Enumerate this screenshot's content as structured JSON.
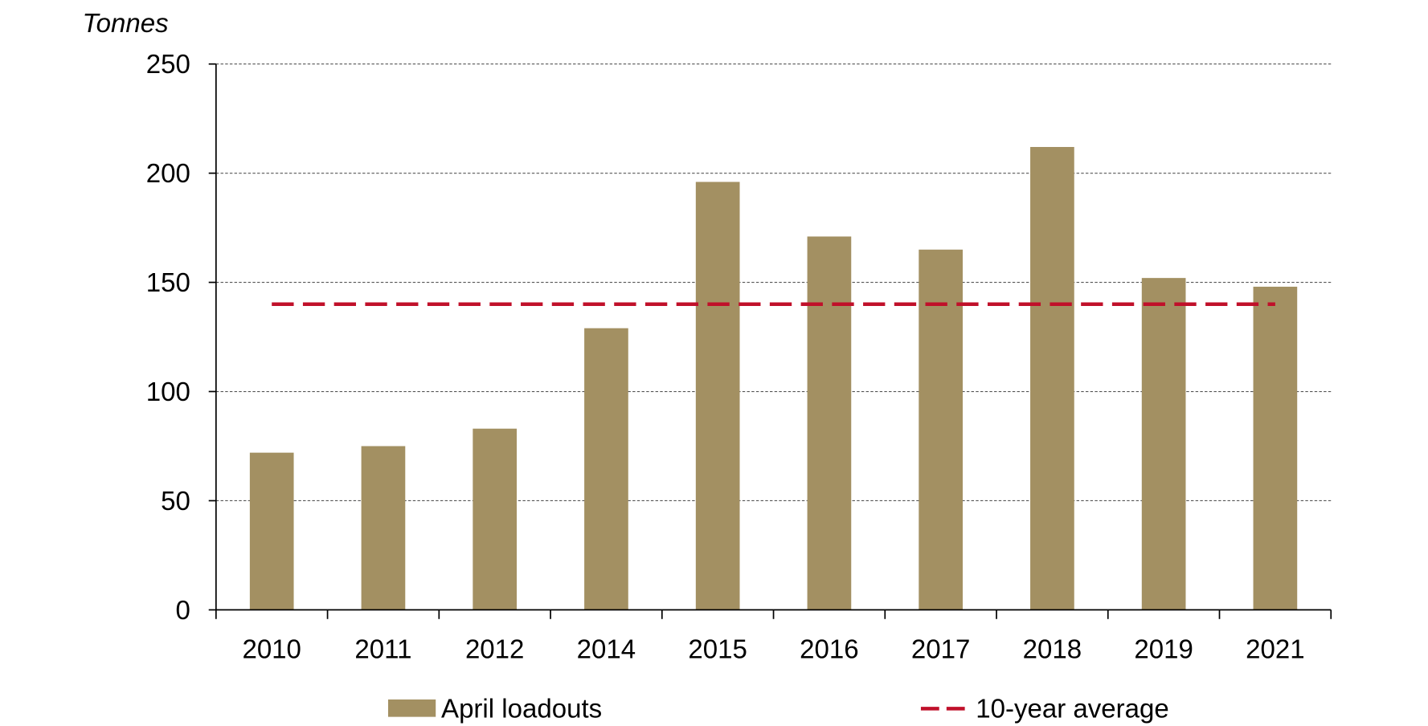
{
  "chart_data": {
    "type": "bar",
    "title": "",
    "xlabel": "",
    "ylabel": "Tonnes",
    "ylim": [
      0,
      250
    ],
    "yticks": [
      0,
      50,
      100,
      150,
      200,
      250
    ],
    "grid": true,
    "legend_position": "bottom",
    "categories": [
      "2010",
      "2011",
      "2012",
      "2014",
      "2015",
      "2016",
      "2017",
      "2018",
      "2019",
      "2021"
    ],
    "series": [
      {
        "name": "April loadouts",
        "type": "bar",
        "color": "#A39062",
        "values": [
          72,
          75,
          83,
          129,
          196,
          171,
          165,
          212,
          152,
          148
        ]
      },
      {
        "name": "10-year average",
        "type": "line",
        "style": "dashed",
        "color": "#C0102A",
        "values": [
          140,
          140,
          140,
          140,
          140,
          140,
          140,
          140,
          140,
          140
        ]
      }
    ]
  }
}
